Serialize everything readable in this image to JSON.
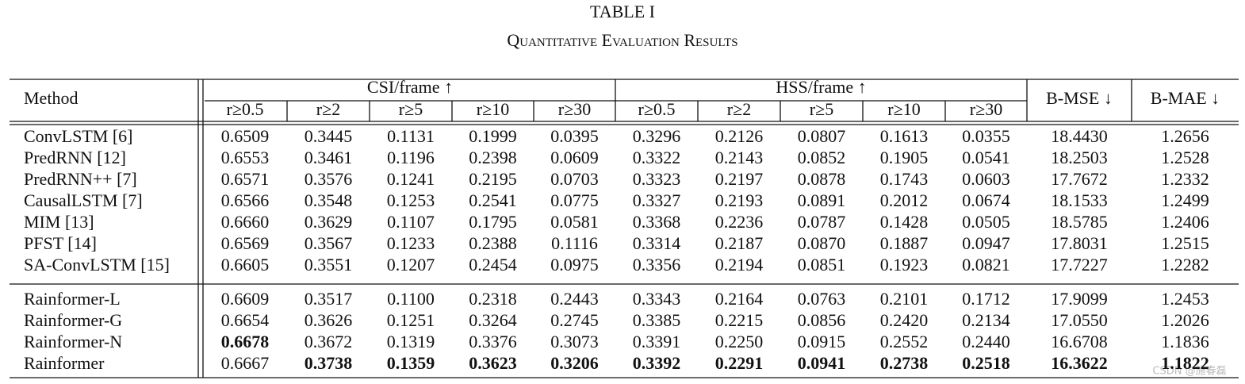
{
  "header": {
    "title": "TABLE I",
    "subtitle": "Quantitative Evaluation Results"
  },
  "table": {
    "top_headers": [
      "Method",
      "CSI/frame ↑",
      "HSS/frame ↑",
      "B-MSE ↓",
      "B-MAE ↓"
    ],
    "sub_headers": [
      "r≥0.5",
      "r≥2",
      "r≥5",
      "r≥10",
      "r≥30",
      "r≥0.5",
      "r≥2",
      "r≥5",
      "r≥10",
      "r≥30"
    ],
    "body_groups": [
      [
        [
          "ConvLSTM [6]",
          "0.6509",
          "0.3445",
          "0.1131",
          "0.1999",
          "0.0395",
          "0.3296",
          "0.2126",
          "0.0807",
          "0.1613",
          "0.0355",
          "18.4430",
          "1.2656"
        ],
        [
          "PredRNN [12]",
          "0.6553",
          "0.3461",
          "0.1196",
          "0.2398",
          "0.0609",
          "0.3322",
          "0.2143",
          "0.0852",
          "0.1905",
          "0.0541",
          "18.2503",
          "1.2528"
        ],
        [
          "PredRNN++ [7]",
          "0.6571",
          "0.3576",
          "0.1241",
          "0.2195",
          "0.0703",
          "0.3323",
          "0.2197",
          "0.0878",
          "0.1743",
          "0.0603",
          "17.7672",
          "1.2332"
        ],
        [
          "CausalLSTM [7]",
          "0.6566",
          "0.3548",
          "0.1253",
          "0.2541",
          "0.0775",
          "0.3327",
          "0.2193",
          "0.0891",
          "0.2012",
          "0.0674",
          "18.1533",
          "1.2499"
        ],
        [
          "MIM [13]",
          "0.6660",
          "0.3629",
          "0.1107",
          "0.1795",
          "0.0581",
          "0.3368",
          "0.2236",
          "0.0787",
          "0.1428",
          "0.0505",
          "18.5785",
          "1.2406"
        ],
        [
          "PFST [14]",
          "0.6569",
          "0.3567",
          "0.1233",
          "0.2388",
          "0.1116",
          "0.3314",
          "0.2187",
          "0.0870",
          "0.1887",
          "0.0947",
          "17.8031",
          "1.2515"
        ],
        [
          "SA-ConvLSTM [15]",
          "0.6605",
          "0.3551",
          "0.1207",
          "0.2454",
          "0.0975",
          "0.3356",
          "0.2194",
          "0.0851",
          "0.1923",
          "0.0821",
          "17.7227",
          "1.2282"
        ]
      ],
      [
        [
          "Rainformer-L",
          "0.6609",
          "0.3517",
          "0.1100",
          "0.2318",
          "0.2443",
          "0.3343",
          "0.2164",
          "0.0763",
          "0.2101",
          "0.1712",
          "17.9099",
          "1.2453"
        ],
        [
          "Rainformer-G",
          "0.6654",
          "0.3626",
          "0.1251",
          "0.3264",
          "0.2745",
          "0.3385",
          "0.2215",
          "0.0856",
          "0.2420",
          "0.2134",
          "17.0550",
          "1.2026"
        ],
        [
          "Rainformer-N",
          "0.6678",
          "0.3672",
          "0.1319",
          "0.3376",
          "0.3073",
          "0.3391",
          "0.2250",
          "0.0915",
          "0.2552",
          "0.2440",
          "16.6708",
          "1.1836"
        ],
        [
          "Rainformer",
          "0.6667",
          "0.3738",
          "0.1359",
          "0.3623",
          "0.3206",
          "0.3392",
          "0.2291",
          "0.0941",
          "0.2738",
          "0.2518",
          "16.3622",
          "1.1822"
        ]
      ]
    ],
    "bold_cells": [
      [
        1,
        2,
        1
      ],
      [
        1,
        3,
        2
      ],
      [
        1,
        3,
        3
      ],
      [
        1,
        3,
        4
      ],
      [
        1,
        3,
        5
      ],
      [
        1,
        3,
        6
      ],
      [
        1,
        3,
        7
      ],
      [
        1,
        3,
        8
      ],
      [
        1,
        3,
        9
      ],
      [
        1,
        3,
        10
      ],
      [
        1,
        3,
        11
      ],
      [
        1,
        3,
        12
      ]
    ]
  },
  "watermark": "CSDN @施春磊"
}
